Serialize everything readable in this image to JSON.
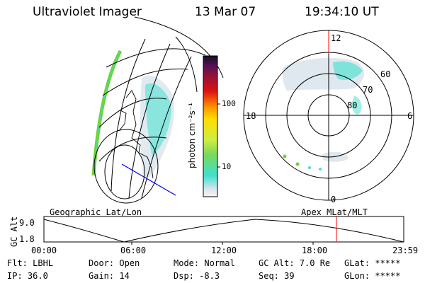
{
  "header": {
    "title": "Ultraviolet Imager",
    "date": "13 Mar 07",
    "time": "19:34:10 UT"
  },
  "colorbar": {
    "unit_label": "photon cm⁻²s⁻¹",
    "ticks": [
      "100",
      "10"
    ]
  },
  "polar_plot": {
    "mlt_labels": [
      "12",
      "18",
      "6",
      "0"
    ],
    "lat_labels": [
      "60",
      "70",
      "80"
    ]
  },
  "altitude_plot": {
    "ylabel": "GC Alt",
    "yticks": [
      "9.0",
      "1.8"
    ],
    "left_title": "Geographic Lat/Lon",
    "right_title": "Apex MLat/MLT",
    "xticks": [
      "00:00",
      "06:00",
      "12:00",
      "18:00",
      "23:59"
    ]
  },
  "info": {
    "flt": "Flt: LBHL",
    "ip": "IP: 36.0",
    "door": "Door: Open",
    "gain": "Gain: 14",
    "mode": "Mode: Normal",
    "dsp": "Dsp:   -8.3",
    "gc_alt": "GC Alt: 7.0 Re",
    "seq": "Seq: 39",
    "glat": "GLat: *****",
    "glon": "GLon: *****"
  },
  "colors": {
    "accent_red": "#ff0000",
    "track_blue": "#0000ff",
    "aurora_cyan": "#40e0d0",
    "aurora_green": "#6fd232"
  }
}
